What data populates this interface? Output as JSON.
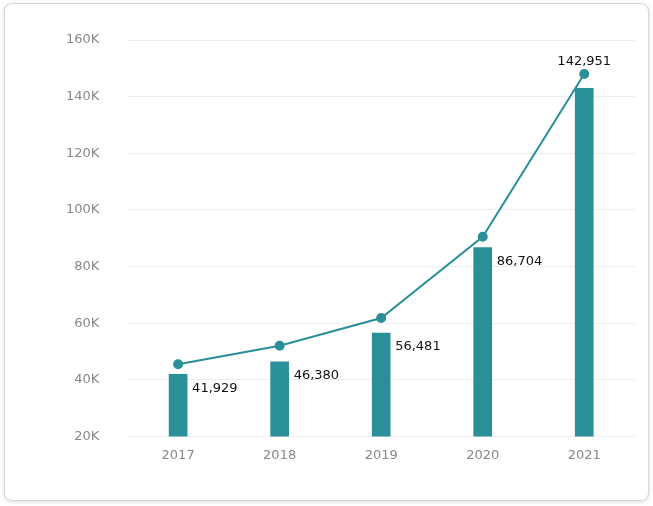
{
  "chart_data": {
    "type": "bar",
    "categories": [
      "2017",
      "2018",
      "2019",
      "2020",
      "2021"
    ],
    "series": [
      {
        "type": "bar",
        "color": "#2a8f99",
        "values": [
          41929,
          46380,
          56481,
          86704,
          142951
        ],
        "value_labels": [
          "41,929",
          "46,380",
          "56,481",
          "86,704",
          "142,951"
        ],
        "data_labels": true
      },
      {
        "type": "line",
        "color": "#2a8f99",
        "marker": "circle",
        "values": [
          45500,
          52000,
          61800,
          90500,
          148000
        ]
      }
    ],
    "ylim": [
      20000,
      160000
    ],
    "yticks": [
      {
        "value": 20000,
        "label": "20K"
      },
      {
        "value": 40000,
        "label": "40K"
      },
      {
        "value": 60000,
        "label": "60K"
      },
      {
        "value": 80000,
        "label": "80K"
      },
      {
        "value": 100000,
        "label": "100K"
      },
      {
        "value": 120000,
        "label": "120K"
      },
      {
        "value": 140000,
        "label": "140K"
      },
      {
        "value": 160000,
        "label": "160K"
      }
    ],
    "grid": true
  }
}
